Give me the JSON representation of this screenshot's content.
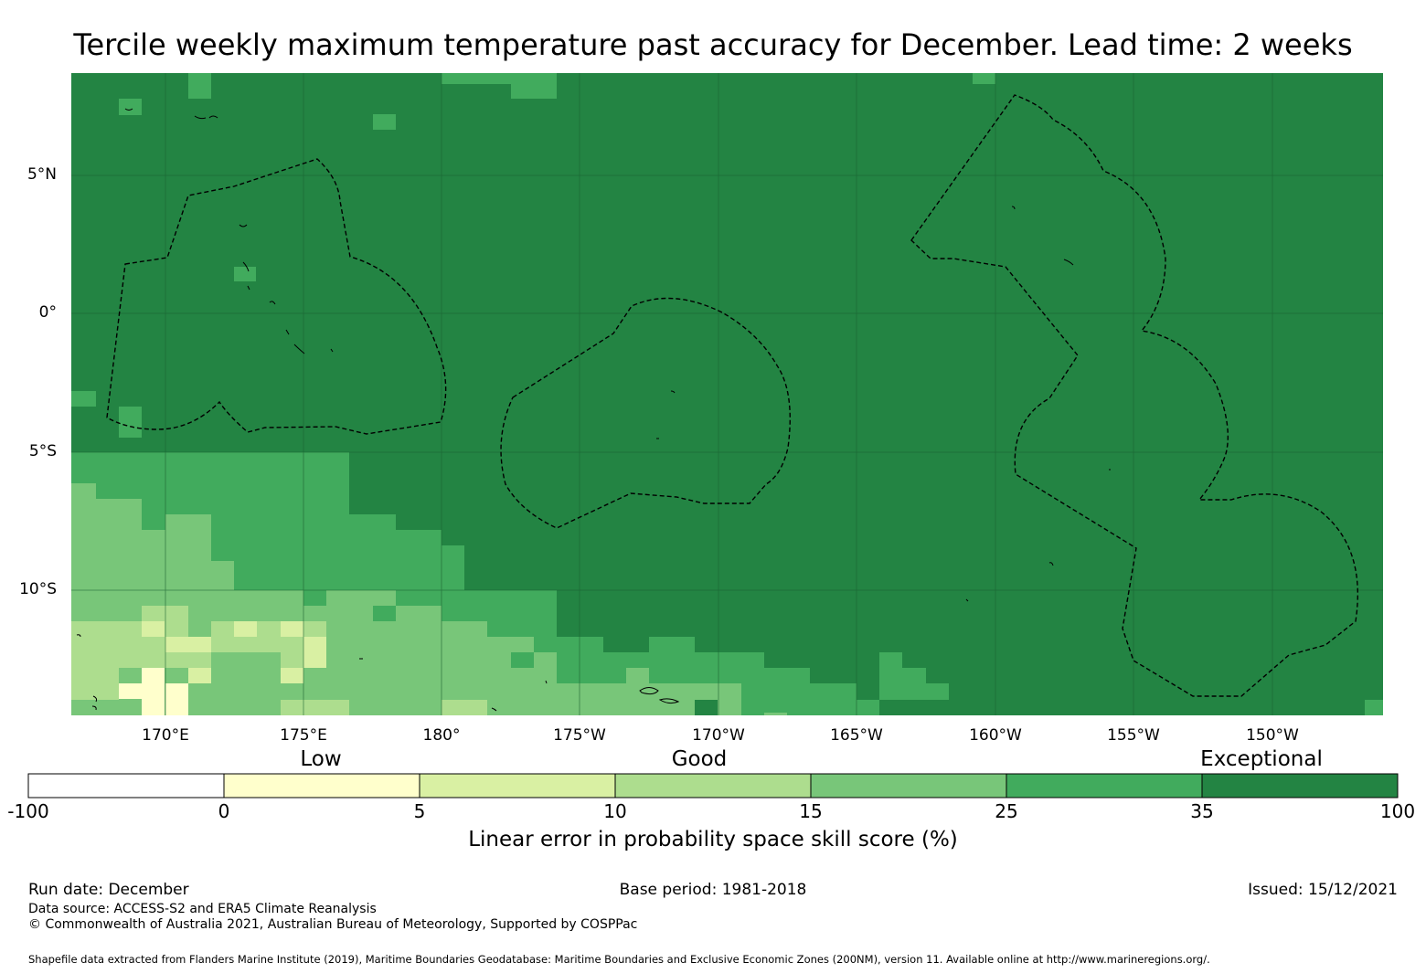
{
  "title": "Tercile weekly maximum temperature past accuracy for December. Lead time: 2 weeks",
  "map": {
    "lat_labels": [
      "5°N",
      "0°",
      "5°S",
      "10°S"
    ],
    "lon_labels": [
      "170°E",
      "175°E",
      "180°",
      "175°W",
      "170°W",
      "165°W",
      "160°W",
      "155°W",
      "150°W"
    ],
    "extent": {
      "lon_min": 166.6,
      "lon_max": 213.9,
      "lat_min": -14.5,
      "lat_max": 8.7
    },
    "colors": {
      "exceptional": "#238443",
      "high": "#41ab5d",
      "mid": "#78c679",
      "good": "#addd8e",
      "low_good": "#d9f0a3",
      "low": "#ffffcc",
      "negative": "#ffffff"
    }
  },
  "colorbar": {
    "category_labels": [
      "Low",
      "Good",
      "Exceptional"
    ],
    "ticks": [
      "-100",
      "0",
      "5",
      "10",
      "15",
      "25",
      "35",
      "100"
    ],
    "colors": [
      "#ffffff",
      "#ffffcc",
      "#d9f0a3",
      "#addd8e",
      "#78c679",
      "#41ab5d",
      "#238443"
    ],
    "title": "Linear error in probability space skill score (%)"
  },
  "footer": {
    "run_date": "Run date: December",
    "base_period": "Base period: 1981-2018",
    "issued": "Issued: 15/12/2021",
    "data_source": "Data source: ACCESS-S2 and ERA5 Climate Reanalysis",
    "copyright": "© Commonwealth of Australia 2021, Australian Bureau of Meteorology, Supported by COSPPac",
    "shapefile": "Shapefile data extracted from Flanders Marine Institute (2019), Maritime Boundaries Geodatabase: Maritime Boundaries and Exclusive Economic Zones (200NM), version 11. Available online at http://www.marineregions.org/."
  }
}
